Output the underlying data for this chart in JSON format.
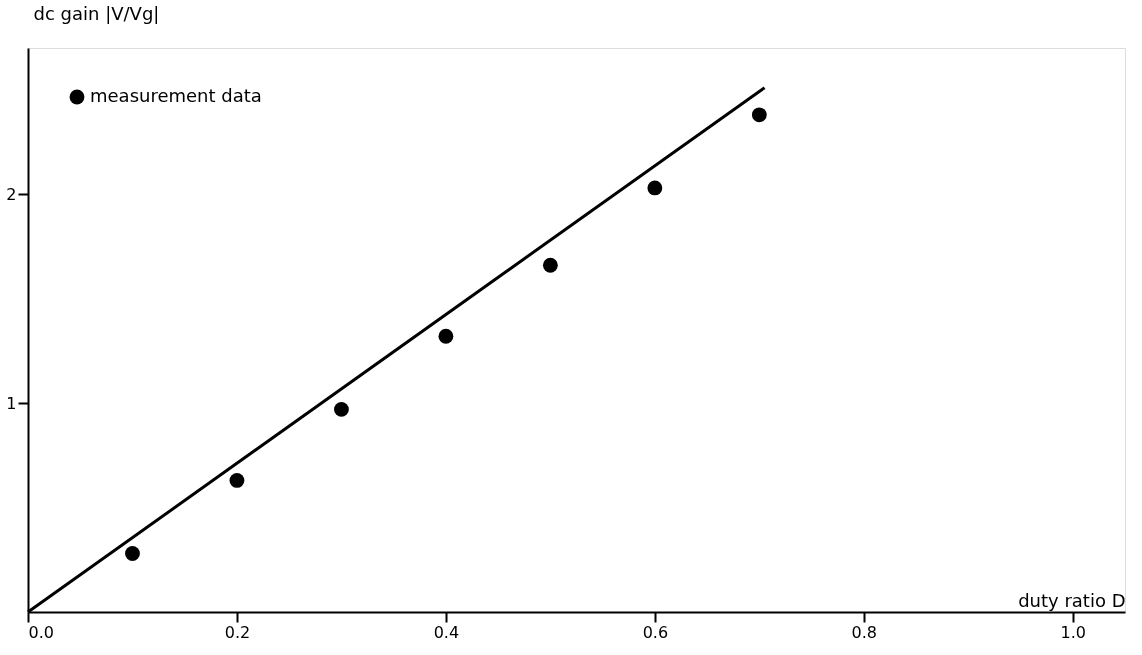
{
  "chart_data": {
    "type": "scatter",
    "xlabel": "duty ratio D",
    "ylabel": "dc gain |V/Vg|",
    "x": [
      0.1,
      0.2,
      0.3,
      0.4,
      0.5,
      0.6,
      0.7
    ],
    "series": [
      {
        "name": "measurement data",
        "marker": "circle",
        "color": "#000000",
        "values": [
          0.28,
          0.63,
          0.97,
          1.32,
          1.66,
          2.03,
          2.38
        ]
      },
      {
        "type": "line",
        "color": "#000000",
        "x": [
          0.0,
          0.705
        ],
        "values": [
          0.0,
          2.51
        ]
      }
    ],
    "xlim": [
      0,
      1.05
    ],
    "ylim": [
      0,
      2.7
    ],
    "xticks": [
      {
        "value": 0,
        "label": "0.0"
      },
      0.2,
      0.4,
      0.6,
      0.8,
      {
        "value": 1.0,
        "label": "1.0"
      }
    ],
    "yticks": [
      1,
      2
    ],
    "grid": false,
    "legend": "top left"
  }
}
